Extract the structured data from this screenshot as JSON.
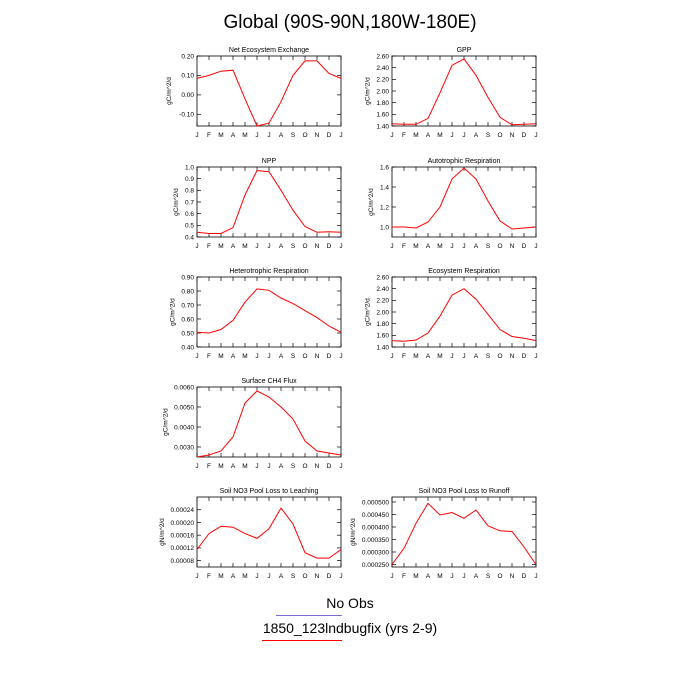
{
  "title": "Global (90S-90N,180W-180E)",
  "legend": [
    {
      "label": "No Obs",
      "color": "#7b6bd6"
    },
    {
      "label": "1850_123lndbugfix (yrs 2-9)",
      "color": "#ff0000"
    }
  ],
  "series_color": "#ff0000",
  "chart_data": [
    {
      "type": "line",
      "title": "Net Ecosystem Exchange",
      "ylabel": "gC/m^2/d",
      "categories": [
        "J",
        "F",
        "M",
        "A",
        "M",
        "J",
        "J",
        "A",
        "S",
        "O",
        "N",
        "D",
        "J"
      ],
      "ylim": [
        -0.16,
        0.2
      ],
      "yticks": [
        "0.20",
        "0.10",
        "0.00",
        "-0.10"
      ],
      "ytick_values": [
        0.2,
        0.1,
        0.0,
        -0.1
      ],
      "values": [
        0.085,
        0.1,
        0.122,
        0.127,
        -0.02,
        -0.16,
        -0.145,
        -0.035,
        0.1,
        0.175,
        0.175,
        0.11,
        0.085
      ]
    },
    {
      "type": "line",
      "title": "GPP",
      "ylabel": "gC/m^2/d",
      "categories": [
        "J",
        "F",
        "M",
        "A",
        "M",
        "J",
        "J",
        "A",
        "S",
        "O",
        "N",
        "D",
        "J"
      ],
      "ylim": [
        1.4,
        2.6
      ],
      "yticks": [
        "2.60",
        "2.40",
        "2.20",
        "2.00",
        "1.80",
        "1.60",
        "1.40"
      ],
      "ytick_values": [
        2.6,
        2.4,
        2.2,
        2.0,
        1.8,
        1.6,
        1.4
      ],
      "values": [
        1.44,
        1.43,
        1.43,
        1.53,
        1.97,
        2.44,
        2.55,
        2.27,
        1.89,
        1.55,
        1.42,
        1.43,
        1.44
      ]
    },
    {
      "type": "line",
      "title": "NPP",
      "ylabel": "gC/m^2/d",
      "categories": [
        "J",
        "F",
        "M",
        "A",
        "M",
        "J",
        "J",
        "A",
        "S",
        "O",
        "N",
        "D",
        "J"
      ],
      "ylim": [
        0.4,
        1.0
      ],
      "yticks": [
        "1.0",
        "0.9",
        "0.8",
        "0.7",
        "0.6",
        "0.5",
        "0.4"
      ],
      "ytick_values": [
        1.0,
        0.9,
        0.8,
        0.7,
        0.6,
        0.5,
        0.4
      ],
      "values": [
        0.44,
        0.43,
        0.43,
        0.48,
        0.76,
        0.97,
        0.96,
        0.8,
        0.63,
        0.49,
        0.44,
        0.445,
        0.44
      ]
    },
    {
      "type": "line",
      "title": "Autotrophic Respiration",
      "ylabel": "gC/m^2/d",
      "categories": [
        "J",
        "F",
        "M",
        "A",
        "M",
        "J",
        "J",
        "A",
        "S",
        "O",
        "N",
        "D",
        "J"
      ],
      "ylim": [
        0.9,
        1.6
      ],
      "yticks": [
        "1.6",
        "1.4",
        "1.2",
        "1.0"
      ],
      "ytick_values": [
        1.6,
        1.4,
        1.2,
        1.0
      ],
      "values": [
        1.0,
        1.0,
        0.99,
        1.05,
        1.2,
        1.48,
        1.59,
        1.48,
        1.26,
        1.06,
        0.98,
        0.99,
        1.0
      ]
    },
    {
      "type": "line",
      "title": "Heterotrophic Respiration",
      "ylabel": "gC/m^2/d",
      "categories": [
        "J",
        "F",
        "M",
        "A",
        "M",
        "J",
        "J",
        "A",
        "S",
        "O",
        "N",
        "D",
        "J"
      ],
      "ylim": [
        0.4,
        0.9
      ],
      "yticks": [
        "0.90",
        "0.80",
        "0.70",
        "0.60",
        "0.50",
        "0.40"
      ],
      "ytick_values": [
        0.9,
        0.8,
        0.7,
        0.6,
        0.5,
        0.4
      ],
      "values": [
        0.505,
        0.5,
        0.525,
        0.59,
        0.72,
        0.815,
        0.805,
        0.75,
        0.71,
        0.66,
        0.61,
        0.55,
        0.505
      ]
    },
    {
      "type": "line",
      "title": "Ecosystem Respiration",
      "ylabel": "gC/m^2/d",
      "categories": [
        "J",
        "F",
        "M",
        "A",
        "M",
        "J",
        "J",
        "A",
        "S",
        "O",
        "N",
        "D",
        "J"
      ],
      "ylim": [
        1.4,
        2.6
      ],
      "yticks": [
        "2.60",
        "2.40",
        "2.20",
        "2.00",
        "1.80",
        "1.60",
        "1.40"
      ],
      "ytick_values": [
        2.6,
        2.4,
        2.2,
        2.0,
        1.8,
        1.6,
        1.4
      ],
      "values": [
        1.51,
        1.5,
        1.52,
        1.64,
        1.93,
        2.29,
        2.4,
        2.22,
        1.96,
        1.7,
        1.58,
        1.55,
        1.51
      ]
    },
    {
      "type": "line",
      "title": "Surface CH4 Flux",
      "ylabel": "gC/m^2/d",
      "categories": [
        "J",
        "F",
        "M",
        "A",
        "M",
        "J",
        "J",
        "A",
        "S",
        "O",
        "N",
        "D",
        "J"
      ],
      "ylim": [
        0.0025,
        0.006
      ],
      "yticks": [
        "0.0060",
        "0.0050",
        "0.0040",
        "0.0030"
      ],
      "ytick_values": [
        0.006,
        0.005,
        0.004,
        0.003
      ],
      "values": [
        0.0025,
        0.0026,
        0.0028,
        0.0035,
        0.0052,
        0.0058,
        0.0055,
        0.005,
        0.0044,
        0.0033,
        0.0028,
        0.0027,
        0.0026
      ]
    },
    {
      "type": "line",
      "title": "Soil NO3 Pool Loss to Leaching",
      "ylabel": "gN/m^2/d",
      "categories": [
        "J",
        "F",
        "M",
        "A",
        "M",
        "J",
        "J",
        "A",
        "S",
        "O",
        "N",
        "D",
        "J"
      ],
      "ylim": [
        6e-05,
        0.00028
      ],
      "yticks": [
        "0.00024",
        "0.00020",
        "0.00016",
        "0.00012",
        "0.00008"
      ],
      "ytick_values": [
        0.00024,
        0.0002,
        0.00016,
        0.00012,
        8e-05
      ],
      "values": [
        0.000115,
        0.000165,
        0.000188,
        0.000185,
        0.000165,
        0.00015,
        0.00018,
        0.000245,
        0.000195,
        0.000105,
        8.8e-05,
        8.8e-05,
        0.000115
      ]
    },
    {
      "type": "line",
      "title": "Soil NO3 Pool Loss to Runoff",
      "ylabel": "gN/m^2/d",
      "categories": [
        "J",
        "F",
        "M",
        "A",
        "M",
        "J",
        "J",
        "A",
        "S",
        "O",
        "N",
        "D",
        "J"
      ],
      "ylim": [
        0.00024,
        0.00052
      ],
      "yticks": [
        "0.000500",
        "0.000450",
        "0.000400",
        "0.000350",
        "0.000300",
        "0.000250"
      ],
      "ytick_values": [
        0.0005,
        0.00045,
        0.0004,
        0.00035,
        0.0003,
        0.00025
      ],
      "values": [
        0.00025,
        0.000315,
        0.000415,
        0.000495,
        0.000448,
        0.000458,
        0.000435,
        0.000468,
        0.000405,
        0.000385,
        0.000382,
        0.00032,
        0.00025
      ]
    }
  ]
}
